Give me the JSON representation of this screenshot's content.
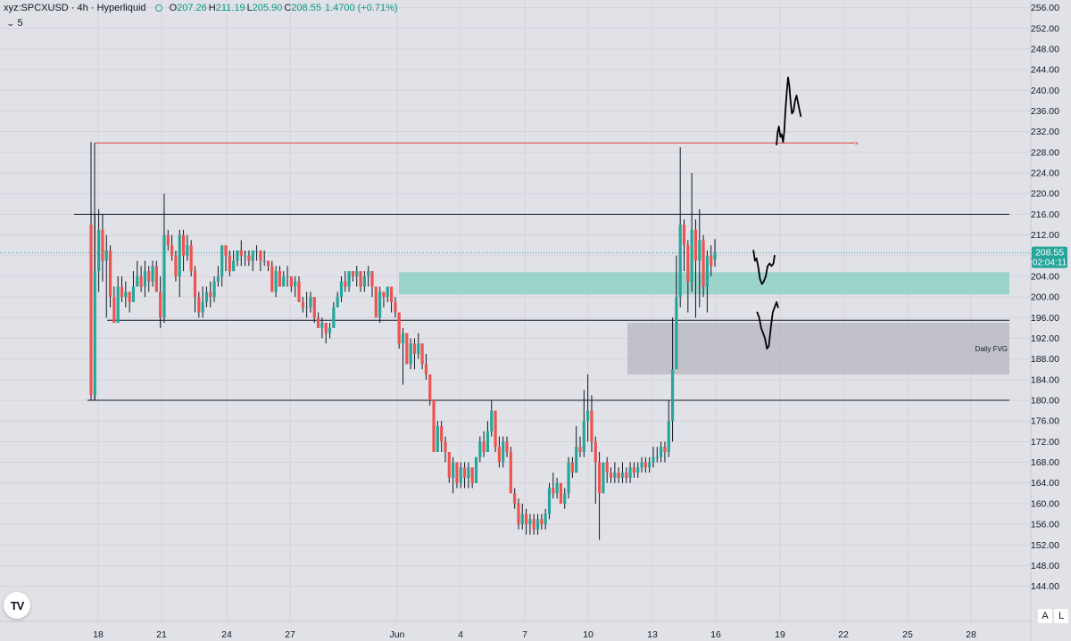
{
  "legend": {
    "symbol": "xyz:SPCXUSD · 4h · Hyperliquid",
    "open_label": "O",
    "open": "207.26",
    "high_label": "H",
    "high": "211.19",
    "low_label": "L",
    "low": "205.90",
    "close_label": "C",
    "close": "208.55",
    "change": "1.4700 (+0.71%)"
  },
  "indicator": {
    "label": "5"
  },
  "price_tag": {
    "price": "208.55",
    "countdown": "02:04:11"
  },
  "scale_buttons": {
    "auto": "A",
    "log": "L"
  },
  "logo_text": "TV",
  "colors": {
    "up": "#26a69a",
    "down": "#ef5350",
    "background": "#e1e2e8",
    "grid": "#d2d3db",
    "resistance": "#e04040",
    "zone": "#8fd1c4",
    "fvg": "#b5b6bf"
  },
  "chart_data": {
    "type": "candlestick",
    "title": "xyz:SPCXUSD · 4h · Hyperliquid",
    "y_ticks": [
      "256.00",
      "252.00",
      "248.00",
      "244.00",
      "240.00",
      "236.00",
      "232.00",
      "228.00",
      "224.00",
      "220.00",
      "216.00",
      "212.00",
      "208.00",
      "204.00",
      "200.00",
      "196.00",
      "192.00",
      "188.00",
      "184.00",
      "180.00",
      "176.00",
      "172.00",
      "168.00",
      "164.00",
      "160.00",
      "156.00",
      "152.00",
      "148.00",
      "144.00"
    ],
    "x_ticks": [
      "18",
      "21",
      "24",
      "27",
      "Jun",
      "4",
      "7",
      "10",
      "13",
      "16",
      "19",
      "22",
      "25",
      "28"
    ],
    "ylim": [
      141.5,
      257.5
    ],
    "last_price": 208.55,
    "horizontal_levels": [
      216.0,
      195.5,
      180.0
    ],
    "resistance_line": 229.8,
    "zones": [
      {
        "label": "",
        "from": 200.5,
        "to": 204.8,
        "color": "#8fd1c4"
      },
      {
        "label": "Daily FVG",
        "from": 185.0,
        "to": 195.0,
        "color": "#b5b6bf"
      }
    ],
    "candles": [
      [
        214.0,
        181.0,
        230.0,
        180.0
      ],
      [
        181.0,
        205.0,
        216.0,
        180.0
      ],
      [
        205.0,
        213.0,
        217.0,
        201.0
      ],
      [
        213.0,
        207.0,
        216.0,
        203.0
      ],
      [
        207.0,
        209.0,
        212.0,
        196.0
      ],
      [
        209.0,
        200.0,
        210.0,
        198.0
      ],
      [
        200.0,
        195.0,
        202.0,
        195.0
      ],
      [
        195.0,
        202.0,
        204.0,
        195.0
      ],
      [
        202.0,
        200.0,
        204.0,
        199.0
      ],
      [
        200.0,
        201.0,
        203.0,
        198.0
      ],
      [
        201.0,
        199.0,
        201.0,
        197.0
      ],
      [
        199.0,
        202.0,
        205.0,
        199.0
      ],
      [
        202.0,
        204.0,
        207.0,
        202.0
      ],
      [
        204.0,
        202.0,
        206.0,
        201.0
      ],
      [
        202.0,
        205.0,
        207.0,
        200.0
      ],
      [
        205.0,
        203.0,
        206.0,
        201.0
      ],
      [
        203.0,
        206.0,
        207.0,
        202.0
      ],
      [
        206.0,
        201.0,
        207.0,
        201.0
      ],
      [
        201.0,
        196.0,
        204.0,
        194.0
      ],
      [
        196.0,
        212.0,
        220.0,
        195.0
      ],
      [
        212.0,
        210.0,
        213.0,
        209.0
      ],
      [
        210.0,
        208.0,
        212.0,
        207.0
      ],
      [
        208.0,
        204.0,
        209.0,
        203.0
      ],
      [
        204.0,
        212.0,
        213.0,
        200.0
      ],
      [
        212.0,
        208.0,
        213.0,
        205.0
      ],
      [
        208.0,
        210.0,
        212.0,
        207.0
      ],
      [
        210.0,
        205.0,
        211.0,
        204.0
      ],
      [
        205.0,
        200.0,
        206.0,
        197.0
      ],
      [
        200.0,
        197.0,
        201.0,
        196.0
      ],
      [
        197.0,
        199.0,
        202.0,
        196.0
      ],
      [
        199.0,
        201.0,
        202.0,
        198.0
      ],
      [
        201.0,
        200.0,
        203.0,
        198.0
      ],
      [
        200.0,
        203.0,
        204.0,
        199.0
      ],
      [
        203.0,
        204.0,
        206.0,
        202.0
      ],
      [
        204.0,
        210.0,
        210.0,
        202.0
      ],
      [
        210.0,
        208.0,
        210.0,
        205.0
      ],
      [
        208.0,
        205.0,
        209.0,
        204.0
      ],
      [
        205.0,
        207.0,
        209.0,
        205.0
      ],
      [
        207.0,
        209.0,
        209.0,
        206.0
      ],
      [
        209.0,
        208.0,
        211.0,
        206.0
      ],
      [
        208.0,
        208.0,
        209.0,
        206.0
      ],
      [
        208.0,
        207.0,
        209.0,
        206.0
      ],
      [
        207.0,
        209.0,
        209.0,
        205.0
      ],
      [
        209.0,
        209.0,
        210.0,
        207.0
      ],
      [
        209.0,
        207.0,
        209.0,
        205.0
      ],
      [
        207.0,
        207.0,
        209.0,
        206.0
      ],
      [
        207.0,
        206.0,
        207.0,
        205.0
      ],
      [
        206.0,
        201.0,
        207.0,
        201.0
      ],
      [
        201.0,
        205.0,
        206.0,
        200.0
      ],
      [
        205.0,
        202.0,
        206.0,
        202.0
      ],
      [
        202.0,
        204.0,
        205.0,
        203.0
      ],
      [
        204.0,
        204.0,
        206.0,
        202.0
      ],
      [
        204.0,
        202.0,
        204.0,
        201.0
      ],
      [
        202.0,
        203.0,
        204.0,
        200.0
      ],
      [
        203.0,
        199.0,
        204.0,
        199.0
      ],
      [
        199.0,
        198.0,
        200.0,
        197.0
      ],
      [
        198.0,
        198.0,
        201.0,
        196.0
      ],
      [
        198.0,
        200.0,
        201.0,
        197.0
      ],
      [
        200.0,
        196.0,
        200.0,
        195.0
      ],
      [
        196.0,
        194.0,
        197.0,
        194.0
      ],
      [
        194.0,
        195.0,
        196.0,
        192.0
      ],
      [
        195.0,
        193.0,
        195.0,
        191.0
      ],
      [
        193.0,
        194.0,
        195.0,
        192.0
      ],
      [
        194.0,
        198.0,
        199.0,
        194.0
      ],
      [
        198.0,
        200.0,
        201.0,
        198.0
      ],
      [
        200.0,
        203.0,
        204.0,
        199.0
      ],
      [
        203.0,
        202.0,
        205.0,
        201.0
      ],
      [
        202.0,
        205.0,
        205.0,
        201.0
      ],
      [
        205.0,
        204.0,
        205.0,
        203.0
      ],
      [
        204.0,
        205.0,
        206.0,
        202.0
      ],
      [
        205.0,
        202.0,
        205.0,
        201.0
      ],
      [
        202.0,
        204.0,
        205.0,
        201.0
      ],
      [
        204.0,
        205.0,
        206.0,
        202.0
      ],
      [
        205.0,
        202.0,
        205.0,
        200.0
      ],
      [
        202.0,
        196.0,
        202.0,
        196.0
      ],
      [
        196.0,
        201.0,
        202.0,
        195.0
      ],
      [
        201.0,
        200.0,
        201.0,
        198.0
      ],
      [
        200.0,
        202.0,
        202.0,
        199.0
      ],
      [
        202.0,
        199.0,
        202.0,
        197.0
      ],
      [
        199.0,
        197.0,
        200.0,
        196.0
      ],
      [
        197.0,
        191.0,
        197.0,
        190.0
      ],
      [
        191.0,
        193.0,
        194.0,
        183.0
      ],
      [
        193.0,
        187.0,
        193.0,
        187.0
      ],
      [
        187.0,
        191.0,
        192.0,
        186.0
      ],
      [
        191.0,
        189.0,
        192.0,
        186.0
      ],
      [
        189.0,
        191.0,
        193.0,
        188.0
      ],
      [
        191.0,
        187.0,
        191.0,
        186.0
      ],
      [
        187.0,
        185.0,
        189.0,
        184.0
      ],
      [
        185.0,
        180.0,
        185.0,
        179.0
      ],
      [
        180.0,
        170.0,
        180.0,
        170.0
      ],
      [
        170.0,
        175.0,
        176.0,
        170.0
      ],
      [
        175.0,
        172.0,
        176.0,
        170.0
      ],
      [
        172.0,
        170.0,
        173.0,
        168.0
      ],
      [
        170.0,
        165.0,
        170.0,
        164.0
      ],
      [
        165.0,
        168.0,
        169.0,
        162.0
      ],
      [
        168.0,
        164.0,
        168.0,
        163.0
      ],
      [
        164.0,
        167.0,
        168.0,
        163.0
      ],
      [
        167.0,
        165.0,
        168.0,
        163.0
      ],
      [
        165.0,
        167.0,
        168.0,
        163.0
      ],
      [
        167.0,
        164.0,
        167.0,
        163.0
      ],
      [
        164.0,
        169.0,
        169.0,
        164.0
      ],
      [
        169.0,
        172.0,
        173.0,
        168.0
      ],
      [
        172.0,
        170.0,
        174.0,
        169.0
      ],
      [
        170.0,
        174.0,
        176.0,
        170.0
      ],
      [
        174.0,
        178.0,
        180.0,
        173.0
      ],
      [
        178.0,
        171.0,
        178.0,
        170.0
      ],
      [
        171.0,
        168.0,
        173.0,
        167.0
      ],
      [
        168.0,
        172.0,
        173.0,
        167.0
      ],
      [
        172.0,
        170.0,
        173.0,
        169.0
      ],
      [
        170.0,
        162.0,
        171.0,
        162.0
      ],
      [
        162.0,
        160.0,
        163.0,
        159.0
      ],
      [
        160.0,
        156.0,
        161.0,
        155.0
      ],
      [
        156.0,
        158.0,
        160.0,
        155.0
      ],
      [
        158.0,
        156.0,
        159.0,
        154.0
      ],
      [
        156.0,
        157.0,
        158.0,
        154.0
      ],
      [
        157.0,
        155.0,
        158.0,
        154.0
      ],
      [
        155.0,
        157.0,
        158.0,
        154.0
      ],
      [
        157.0,
        156.0,
        158.0,
        155.0
      ],
      [
        156.0,
        158.0,
        159.0,
        155.0
      ],
      [
        158.0,
        163.0,
        164.0,
        157.0
      ],
      [
        163.0,
        162.0,
        166.0,
        161.0
      ],
      [
        162.0,
        164.0,
        165.0,
        161.0
      ],
      [
        164.0,
        160.0,
        164.0,
        160.0
      ],
      [
        160.0,
        162.0,
        163.0,
        159.0
      ],
      [
        162.0,
        168.0,
        169.0,
        161.0
      ],
      [
        168.0,
        166.0,
        169.0,
        165.0
      ],
      [
        166.0,
        171.0,
        175.0,
        166.0
      ],
      [
        171.0,
        170.0,
        173.0,
        169.0
      ],
      [
        170.0,
        176.0,
        182.0,
        169.0
      ],
      [
        176.0,
        178.0,
        185.0,
        172.0
      ],
      [
        178.0,
        172.0,
        181.0,
        170.0
      ],
      [
        172.0,
        168.0,
        173.0,
        160.0
      ],
      [
        168.0,
        162.0,
        170.0,
        153.0
      ],
      [
        162.0,
        168.0,
        168.0,
        162.0
      ],
      [
        168.0,
        166.0,
        169.0,
        164.0
      ],
      [
        166.0,
        165.0,
        167.0,
        164.0
      ],
      [
        165.0,
        166.0,
        168.0,
        164.0
      ],
      [
        166.0,
        165.0,
        167.0,
        164.0
      ],
      [
        165.0,
        166.0,
        168.0,
        164.0
      ],
      [
        166.0,
        165.0,
        167.0,
        164.0
      ],
      [
        165.0,
        167.0,
        168.0,
        164.0
      ],
      [
        167.0,
        166.0,
        168.0,
        165.0
      ],
      [
        166.0,
        167.0,
        168.0,
        165.0
      ],
      [
        167.0,
        168.0,
        169.0,
        166.0
      ],
      [
        168.0,
        167.0,
        169.0,
        166.0
      ],
      [
        167.0,
        168.0,
        169.0,
        166.0
      ],
      [
        168.0,
        169.0,
        171.0,
        167.0
      ],
      [
        169.0,
        169.0,
        171.0,
        168.0
      ],
      [
        169.0,
        171.0,
        172.0,
        168.0
      ],
      [
        171.0,
        170.0,
        172.0,
        168.0
      ],
      [
        170.0,
        176.0,
        180.0,
        169.0
      ],
      [
        176.0,
        186.0,
        196.0,
        172.0
      ],
      [
        186.0,
        200.0,
        208.0,
        189.0
      ],
      [
        200.0,
        214.0,
        229.0,
        198.0
      ],
      [
        214.0,
        210.0,
        215.0,
        205.0
      ],
      [
        210.0,
        203.0,
        211.0,
        197.0
      ],
      [
        203.0,
        213.0,
        224.0,
        201.0
      ],
      [
        213.0,
        207.0,
        215.0,
        196.0
      ],
      [
        207.0,
        211.0,
        217.0,
        198.0
      ],
      [
        211.0,
        202.0,
        212.0,
        200.0
      ],
      [
        202.0,
        208.0,
        209.0,
        197.0
      ],
      [
        208.0,
        206.0,
        210.0,
        204.0
      ],
      [
        207.26,
        208.55,
        211.19,
        205.9
      ]
    ],
    "drawings": [
      {
        "name": "projection-high",
        "points": [
          [
            178.0,
            229.5
          ],
          [
            178.3,
            232.0
          ],
          [
            178.6,
            233.0
          ],
          [
            179.0,
            231.0
          ],
          [
            179.3,
            231.5
          ],
          [
            179.7,
            230.0
          ],
          [
            180.0,
            232.0
          ],
          [
            180.3,
            236.0
          ],
          [
            180.7,
            240.0
          ],
          [
            181.0,
            242.5
          ],
          [
            181.3,
            241.0
          ],
          [
            181.7,
            237.5
          ],
          [
            182.0,
            235.5
          ],
          [
            182.4,
            236.0
          ],
          [
            182.8,
            238.0
          ],
          [
            183.2,
            239.0
          ],
          [
            183.6,
            237.5
          ],
          [
            184.0,
            236.0
          ],
          [
            184.3,
            235.0
          ]
        ]
      },
      {
        "name": "projection-mid",
        "points": [
          [
            172.0,
            209.0
          ],
          [
            172.4,
            207.0
          ],
          [
            172.8,
            207.5
          ],
          [
            173.2,
            206.0
          ],
          [
            173.7,
            203.5
          ],
          [
            174.2,
            202.5
          ],
          [
            174.7,
            203.0
          ],
          [
            175.2,
            204.0
          ],
          [
            175.7,
            206.0
          ],
          [
            176.2,
            206.5
          ],
          [
            176.7,
            206.0
          ],
          [
            177.2,
            206.5
          ],
          [
            177.5,
            208.0
          ]
        ]
      },
      {
        "name": "projection-low",
        "points": [
          [
            173.0,
            197.0
          ],
          [
            173.5,
            196.0
          ],
          [
            174.0,
            194.0
          ],
          [
            174.5,
            193.0
          ],
          [
            175.0,
            192.0
          ],
          [
            175.5,
            190.0
          ],
          [
            176.0,
            190.5
          ],
          [
            176.5,
            194.0
          ],
          [
            177.0,
            197.0
          ],
          [
            177.5,
            198.0
          ],
          [
            178.0,
            199.0
          ],
          [
            178.4,
            198.0
          ]
        ]
      }
    ]
  },
  "annotations": {
    "fvg_label": "Daily FVG",
    "resistance_marker": "×"
  }
}
